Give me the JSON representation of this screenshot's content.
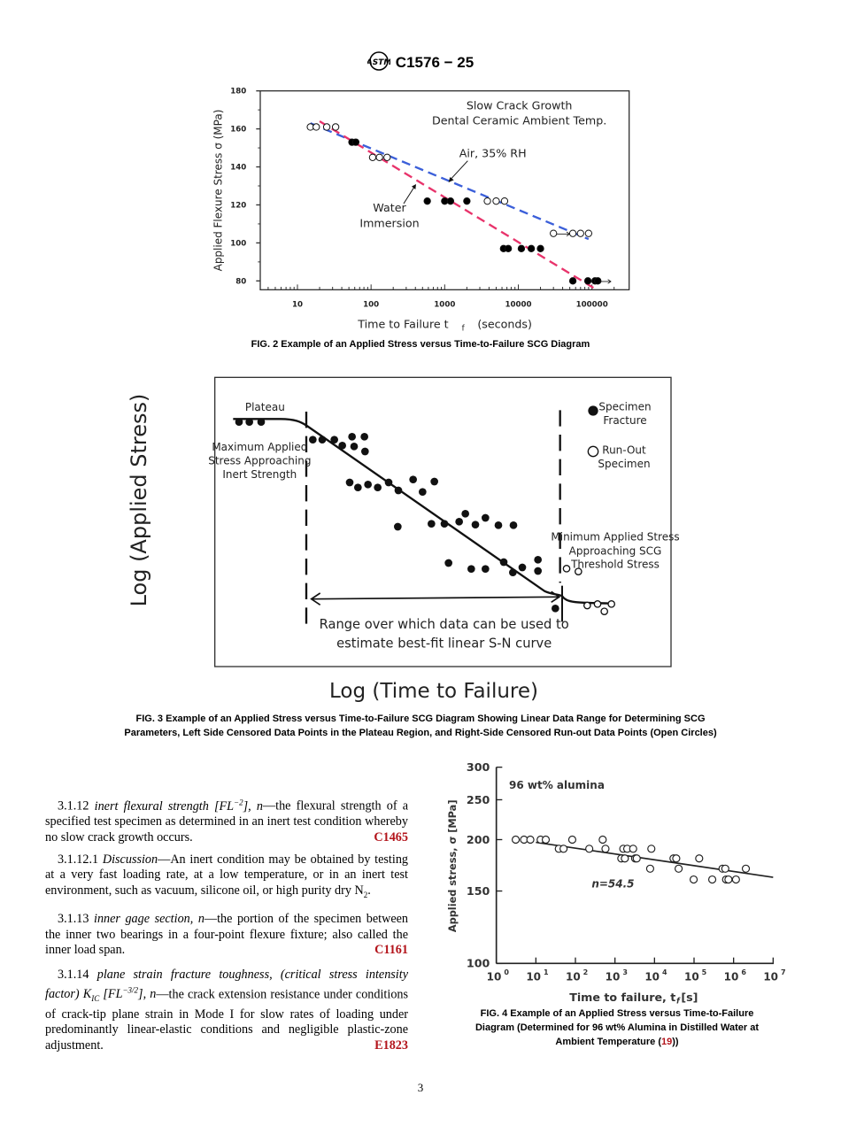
{
  "header": {
    "logo": "ASTM",
    "designation": "C1576 − 25"
  },
  "fig2": {
    "caption": "FIG. 2 Example of an Applied Stress versus Time-to-Failure SCG Diagram",
    "chart_data": {
      "type": "scatter",
      "title": [
        "Slow Crack Growth",
        "Dental Ceramic Ambient Temp."
      ],
      "xlabel": "Time to Failure   t",
      "xlabel_sub": "f",
      "xlabel_unit": "(seconds)",
      "ylabel": "Applied Flexure Stress  σ  (MPa)",
      "xscale": "log",
      "xlim": [
        4,
        200000
      ],
      "ylim": [
        76,
        180
      ],
      "xticks": [
        {
          "v": 10,
          "label": "10"
        },
        {
          "v": 100,
          "label": "100"
        },
        {
          "v": 1000,
          "label": "1000"
        },
        {
          "v": 10000,
          "label": "10000"
        },
        {
          "v": 100000,
          "label": "100000"
        }
      ],
      "yticks": [
        {
          "v": 80,
          "label": "80"
        },
        {
          "v": 100,
          "label": "100"
        },
        {
          "v": 120,
          "label": "120"
        },
        {
          "v": 140,
          "label": "140"
        },
        {
          "v": 160,
          "label": "160"
        },
        {
          "v": 180,
          "label": "180"
        }
      ],
      "annotations": {
        "air": "Air, 35% RH",
        "water": [
          "Water",
          "Immersion"
        ]
      },
      "series": [
        {
          "name": "Air, 35% RH",
          "marker": "open",
          "line_color": "#3b5fd9",
          "points": [
            [
              15,
              161
            ],
            [
              18,
              161
            ],
            [
              25,
              161
            ],
            [
              33,
              161
            ],
            [
              105,
              145
            ],
            [
              130,
              145
            ],
            [
              165,
              145
            ],
            [
              3800,
              122
            ],
            [
              5000,
              122
            ],
            [
              6500,
              122
            ],
            [
              30000,
              105
            ],
            [
              55000,
              105
            ],
            [
              70000,
              105
            ],
            [
              90000,
              105
            ]
          ],
          "fit": [
            [
              15,
              163
            ],
            [
              90000,
              102
            ]
          ]
        },
        {
          "name": "Water Immersion",
          "marker": "filled",
          "line_color": "#e8336b",
          "points": [
            [
              55,
              153
            ],
            [
              62,
              153
            ],
            [
              580,
              122
            ],
            [
              1000,
              122
            ],
            [
              1200,
              122
            ],
            [
              2000,
              122
            ],
            [
              6300,
              97
            ],
            [
              7300,
              97
            ],
            [
              11000,
              97
            ],
            [
              15000,
              97
            ],
            [
              20000,
              97
            ],
            [
              55000,
              80
            ],
            [
              88000,
              80
            ],
            [
              110000,
              80
            ],
            [
              120000,
              80
            ]
          ],
          "fit": [
            [
              20,
              164
            ],
            [
              120000,
              75
            ]
          ]
        }
      ]
    }
  },
  "fig3": {
    "ylabel": "Log (Applied Stress)",
    "xlabel": "Log (Time to Failure)",
    "plateau": "Plateau",
    "max_note": [
      "Maximum Applied",
      "Stress Approaching",
      "Inert Strength"
    ],
    "min_note": [
      "Minimum Applied Stress",
      "Approaching SCG",
      "Threshold Stress"
    ],
    "legend": {
      "fracture": [
        "Specimen",
        "Fracture"
      ],
      "runout": [
        "Run-Out",
        "Specimen"
      ]
    },
    "range_note": [
      "Range over which data can be used to",
      "estimate best-fit linear S-N curve"
    ],
    "caption": [
      "FIG. 3 Example of an Applied Stress versus Time-to-Failure SCG Diagram Showing Linear Data Range for Determining SCG",
      "Parameters, Left Side Censored Data Points in the Plateau Region, and Right-Side Censored Run-out Data Points (Open Circles)"
    ]
  },
  "fig4": {
    "caption": [
      "FIG. 4 Example of an Applied Stress versus Time-to-Failure",
      "Diagram (Determined for 96 wt% Alumina in Distilled Water at",
      "Ambient Temperature (",
      ")",
      ")"
    ],
    "caption_ref": "19",
    "chart_data": {
      "type": "scatter",
      "annotation": "96 wt% alumina",
      "fit_label": "n=54.5",
      "xlabel": "Time to failure, t",
      "xlabel_sub": "f",
      "xlabel_unit": " [s]",
      "ylabel": "Applied stress, σ [MPa]",
      "xscale": "log",
      "yscale": "log",
      "xlim": [
        1,
        10000000
      ],
      "ylim": [
        100,
        300
      ],
      "xtick_exponents": [
        "0",
        "1",
        "2",
        "3",
        "4",
        "5",
        "6",
        "7"
      ],
      "xtick_base": "10",
      "yticks": [
        {
          "v": 100,
          "label": "100"
        },
        {
          "v": 150,
          "label": "150"
        },
        {
          "v": 200,
          "label": "200"
        },
        {
          "v": 250,
          "label": "250"
        },
        {
          "v": 300,
          "label": "300"
        }
      ],
      "series": [
        {
          "name": "96 wt% alumina",
          "marker": "open",
          "log_t_points": [
            [
              0.49,
              200
            ],
            [
              0.7,
              200
            ],
            [
              0.86,
              200
            ],
            [
              1.12,
              200
            ],
            [
              1.25,
              200
            ],
            [
              1.92,
              200
            ],
            [
              2.69,
              200
            ],
            [
              1.58,
              190
            ],
            [
              1.7,
              190
            ],
            [
              2.35,
              190
            ],
            [
              2.76,
              190
            ],
            [
              3.21,
              190
            ],
            [
              3.31,
              190
            ],
            [
              3.46,
              190
            ],
            [
              3.92,
              190
            ],
            [
              3.16,
              180
            ],
            [
              3.25,
              180
            ],
            [
              3.51,
              180
            ],
            [
              3.55,
              180
            ],
            [
              4.48,
              180
            ],
            [
              4.55,
              180
            ],
            [
              5.13,
              180
            ],
            [
              3.89,
              170
            ],
            [
              4.61,
              170
            ],
            [
              5.72,
              170
            ],
            [
              5.79,
              170
            ],
            [
              6.31,
              170
            ],
            [
              4.99,
              160
            ],
            [
              5.46,
              160
            ],
            [
              5.81,
              160
            ],
            [
              5.87,
              160
            ],
            [
              6.06,
              160
            ]
          ],
          "fit_log_t": [
            [
              1,
              197
            ],
            [
              7,
              162
            ]
          ]
        }
      ]
    }
  },
  "body": {
    "p1": {
      "num": "3.1.12 ",
      "term": "inert flexural strength [FL",
      "sup": "−2",
      "term_end": "], n",
      "text": "—the flexural strength of a specified test specimen as determined in an inert test condition whereby no slow crack growth occurs.",
      "ref": "C1465"
    },
    "p2": {
      "num": "3.1.12.1 ",
      "term": "Discussion",
      "text": "—An inert condition may be obtained by testing at a very fast loading rate, at a low temperature, or in an inert test environment, such as vacuum, silicone oil, or high purity dry N",
      "sub": "2",
      "end": "."
    },
    "p3": {
      "num": "3.1.13 ",
      "term": "inner gage section, n",
      "text": "—the portion of the specimen between the inner two bearings in a four-point flexure fixture; also called the inner load span.",
      "ref": "C1161"
    },
    "p4": {
      "num": "3.1.14 ",
      "term": "plane strain fracture toughness, (critical stress intensity factor) K",
      "term_sub": "IC",
      "term2": " [FL",
      "sup": "−3/2",
      "term_end": "], n",
      "text": "—the crack extension resistance under conditions of crack-tip plane strain in Mode I for slow rates of loading under predominantly linear-elastic conditions and negligible plastic-zone adjustment.",
      "ref": "E1823"
    }
  },
  "page_number": "3"
}
